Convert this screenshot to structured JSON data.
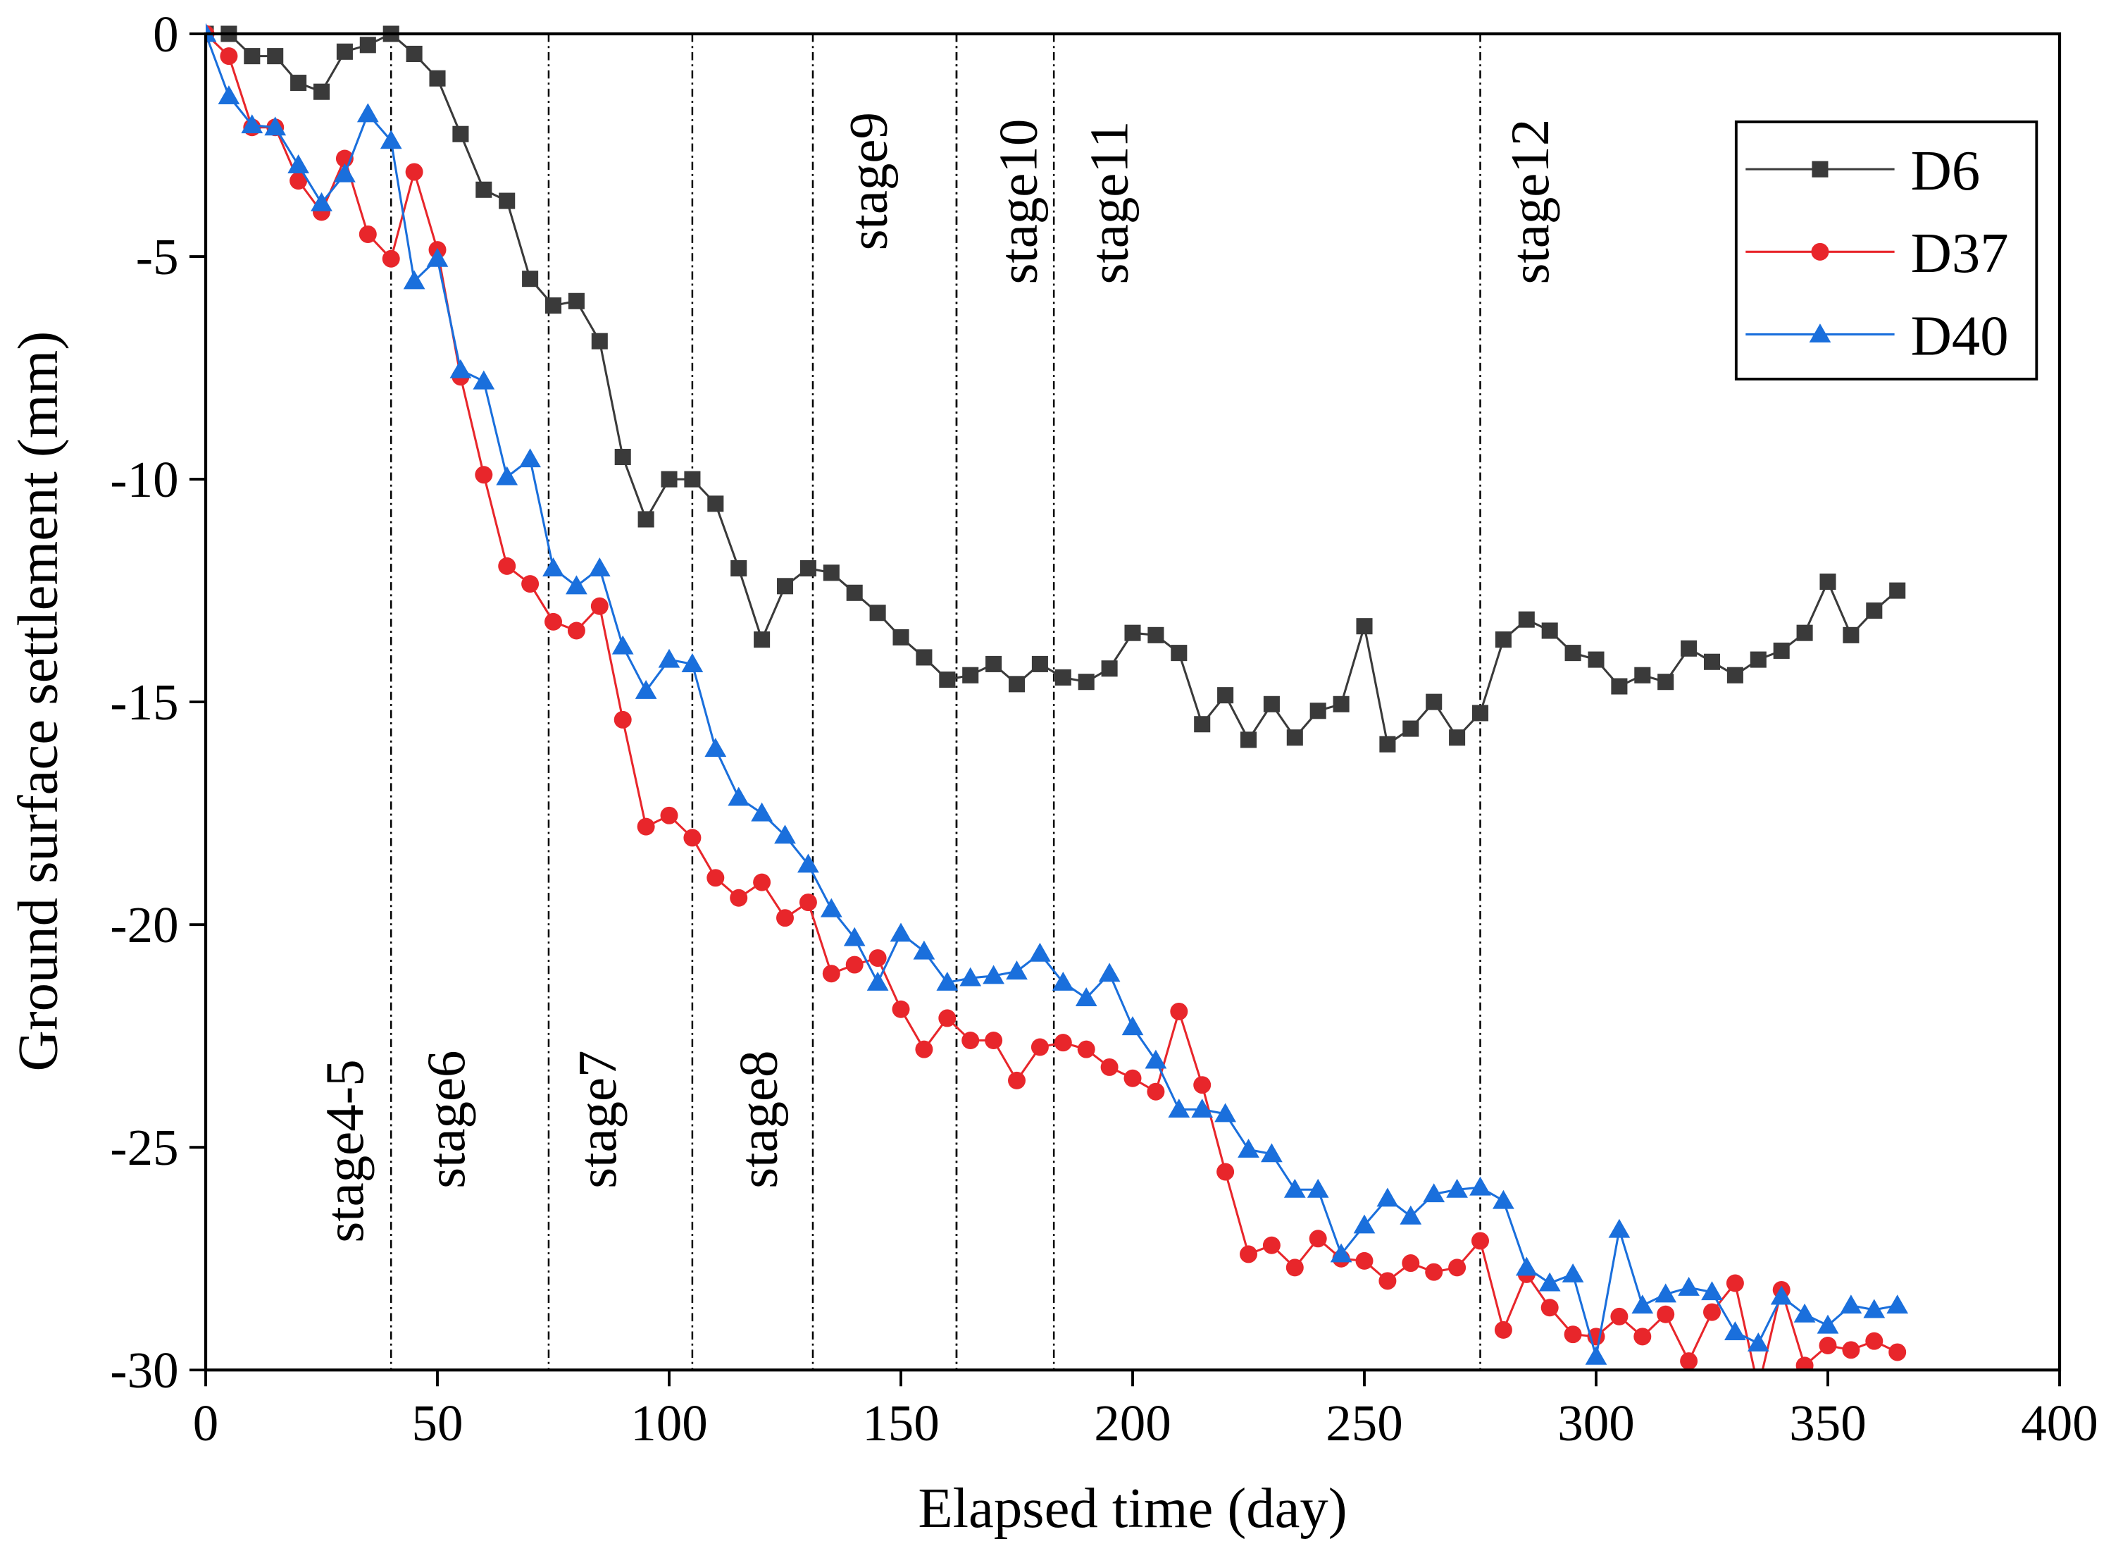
{
  "chart_data": {
    "type": "line",
    "title": "",
    "xlabel": "Elapsed time (day)",
    "ylabel": "Ground surface settlement (mm)",
    "xlim": [
      0,
      400
    ],
    "ylim": [
      -30,
      0
    ],
    "xticks": [
      0,
      50,
      100,
      150,
      200,
      250,
      300,
      350,
      400
    ],
    "yticks": [
      0,
      -5,
      -10,
      -15,
      -20,
      -25,
      -30
    ],
    "grid": false,
    "legend_position": "top-right",
    "x_start": 0,
    "x_step": 5,
    "series": [
      {
        "name": "D6",
        "color": "#3a3a3a",
        "marker": "square",
        "values": [
          0,
          0,
          -0.5,
          -0.5,
          -1.1,
          -1.3,
          -0.4,
          -0.25,
          0,
          -0.45,
          -1,
          -2.25,
          -3.5,
          -3.75,
          -5.5,
          -6.1,
          -6,
          -6.9,
          -9.5,
          -10.9,
          -10,
          -10,
          -10.55,
          -12,
          -13.6,
          -12.4,
          -12,
          -12.1,
          -12.55,
          -13,
          -13.55,
          -14,
          -14.5,
          -14.4,
          -14.15,
          -14.6,
          -14.15,
          -14.45,
          -14.55,
          -14.25,
          -13.45,
          -13.5,
          -13.9,
          -15.5,
          -14.85,
          -15.85,
          -15.05,
          -15.8,
          -15.2,
          -15.05,
          -13.3,
          -15.95,
          -15.6,
          -15,
          -15.8,
          -15.25,
          -13.6,
          -13.15,
          -13.4,
          -13.9,
          -14.05,
          -14.65,
          -14.4,
          -14.55,
          -13.8,
          -14.1,
          -14.4,
          -14.05,
          -13.85,
          -13.45,
          -12.3,
          -13.5,
          -12.95,
          -12.5
        ]
      },
      {
        "name": "D37",
        "color": "#e8262b",
        "marker": "circle",
        "values": [
          0,
          -0.5,
          -2.1,
          -2.1,
          -3.3,
          -4,
          -2.8,
          -4.5,
          -5.05,
          -3.1,
          -4.85,
          -7.7,
          -9.9,
          -11.95,
          -12.35,
          -13.2,
          -13.4,
          -12.85,
          -15.4,
          -17.8,
          -17.55,
          -18.05,
          -18.95,
          -19.4,
          -19.05,
          -19.85,
          -19.5,
          -21.1,
          -20.9,
          -20.75,
          -21.9,
          -22.8,
          -22.1,
          -22.6,
          -22.6,
          -23.5,
          -22.75,
          -22.65,
          -22.8,
          -23.2,
          -23.45,
          -23.75,
          -21.95,
          -23.6,
          -25.55,
          -27.4,
          -27.2,
          -27.7,
          -27.05,
          -27.5,
          -27.55,
          -28,
          -27.6,
          -27.8,
          -27.7,
          -27.1,
          -29.1,
          -27.85,
          -28.6,
          -29.2,
          -29.25,
          -28.8,
          -29.25,
          -28.75,
          -29.8,
          -28.7,
          -28.05,
          -30.4,
          -28.2,
          -29.9,
          -29.45,
          -29.55,
          -29.35,
          -29.6
        ]
      },
      {
        "name": "D40",
        "color": "#1a6fdc",
        "marker": "triangle",
        "values": [
          0,
          -1.4,
          -2.05,
          -2.1,
          -2.95,
          -3.8,
          -3.15,
          -1.8,
          -2.4,
          -5.55,
          -5.05,
          -7.55,
          -7.8,
          -9.95,
          -9.55,
          -12,
          -12.4,
          -12,
          -13.75,
          -14.75,
          -14.05,
          -14.15,
          -16.05,
          -17.15,
          -17.5,
          -18,
          -18.65,
          -19.65,
          -20.3,
          -21.3,
          -20.2,
          -20.6,
          -21.3,
          -21.2,
          -21.15,
          -21.05,
          -20.65,
          -21.3,
          -21.65,
          -21.1,
          -22.3,
          -23.05,
          -24.15,
          -24.15,
          -24.25,
          -25.05,
          -25.15,
          -25.95,
          -25.95,
          -27.4,
          -26.75,
          -26.15,
          -26.55,
          -26.05,
          -25.95,
          -25.9,
          -26.2,
          -27.7,
          -28.05,
          -27.85,
          -29.7,
          -26.85,
          -28.55,
          -28.3,
          -28.15,
          -28.25,
          -29.15,
          -29.4,
          -28.35,
          -28.75,
          -29,
          -28.55,
          -28.65,
          -28.55
        ]
      }
    ],
    "annotations": [
      {
        "label": "stage4-5",
        "day": 40,
        "side": "bottom"
      },
      {
        "label": "stage6",
        "day": 74,
        "side": "bottom"
      },
      {
        "label": "stage7",
        "day": 105,
        "side": "bottom"
      },
      {
        "label": "stage8",
        "day": 131,
        "side": "bottom"
      },
      {
        "label": "stage9",
        "day": 162,
        "side": "top"
      },
      {
        "label": "stage10",
        "day": 183,
        "side": "top"
      },
      {
        "label": "stage11",
        "day": 275,
        "side": "top"
      },
      {
        "label": "stage12",
        "day": 275,
        "side": "top"
      }
    ]
  }
}
